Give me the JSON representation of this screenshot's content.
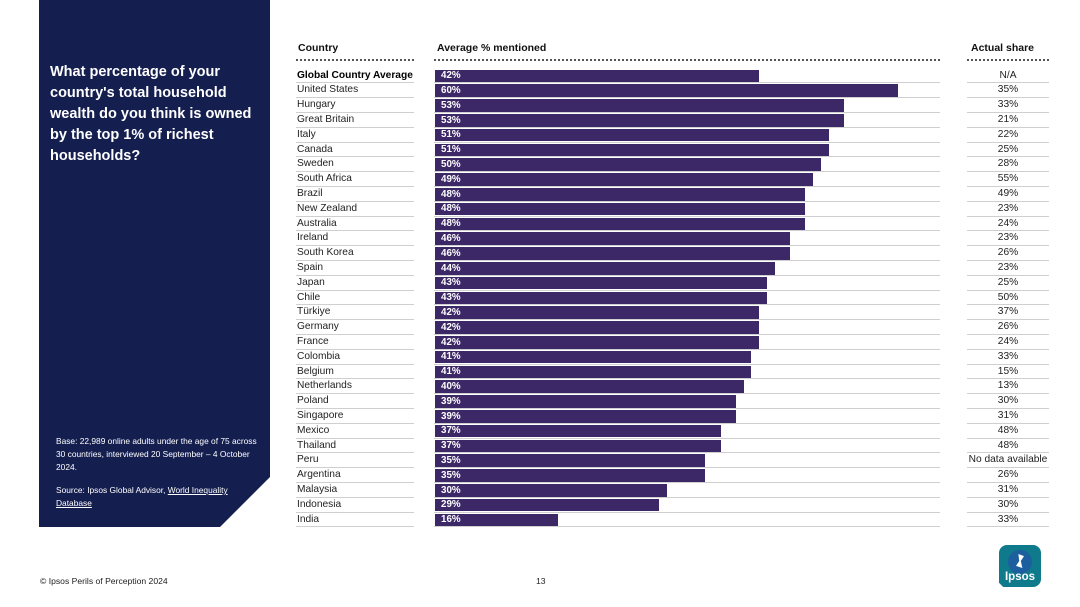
{
  "panel": {
    "question": "What percentage of your country's total household wealth do you think is owned by the top 1% of richest households?",
    "base": "Base: 22,989 online adults under the age of 75 across 30 countries, interviewed 20 September – 4 October 2024.",
    "source_prefix": "Source: Ipsos Global Advisor, ",
    "source_link": "World Inequality Database"
  },
  "headers": {
    "country": "Country",
    "avg": "Average % mentioned",
    "actual": "Actual share"
  },
  "chart_data": {
    "type": "bar",
    "orientation": "horizontal",
    "title": "What percentage of your country's total household wealth do you think is owned by the top 1% of richest households?",
    "value_label": "Average % mentioned",
    "xlim": [
      0,
      65
    ],
    "categories": [
      "Global Country Average",
      "United States",
      "Hungary",
      "Great Britain",
      "Italy",
      "Canada",
      "Sweden",
      "South Africa",
      "Brazil",
      "New Zealand",
      "Australia",
      "Ireland",
      "South Korea",
      "Spain",
      "Japan",
      "Chile",
      "Türkiye",
      "Germany",
      "France",
      "Colombia",
      "Belgium",
      "Netherlands",
      "Poland",
      "Singapore",
      "Mexico",
      "Thailand",
      "Peru",
      "Argentina",
      "Malaysia",
      "Indonesia",
      "India"
    ],
    "values": [
      42,
      60,
      53,
      53,
      51,
      51,
      50,
      49,
      48,
      48,
      48,
      46,
      46,
      44,
      43,
      43,
      42,
      42,
      42,
      41,
      41,
      40,
      39,
      39,
      37,
      37,
      35,
      35,
      30,
      29,
      16
    ],
    "value_labels": [
      "42%",
      "60%",
      "53%",
      "53%",
      "51%",
      "51%",
      "50%",
      "49%",
      "48%",
      "48%",
      "48%",
      "46%",
      "46%",
      "44%",
      "43%",
      "43%",
      "42%",
      "42%",
      "42%",
      "41%",
      "41%",
      "40%",
      "39%",
      "39%",
      "37%",
      "37%",
      "35%",
      "35%",
      "30%",
      "29%",
      "16%"
    ],
    "actual_share": [
      "N/A",
      "35%",
      "33%",
      "21%",
      "22%",
      "25%",
      "28%",
      "55%",
      "49%",
      "23%",
      "24%",
      "23%",
      "26%",
      "23%",
      "25%",
      "50%",
      "37%",
      "26%",
      "24%",
      "33%",
      "15%",
      "13%",
      "30%",
      "31%",
      "48%",
      "48%",
      "No data available",
      "26%",
      "31%",
      "30%",
      "33%"
    ]
  },
  "footer": {
    "copyright": "© Ipsos Perils of Perception 2024",
    "page": "13",
    "logo_text": "Ipsos"
  },
  "colors": {
    "bar": "#3d2867",
    "panel": "#141e4f",
    "logo": "#0f7a8c"
  }
}
